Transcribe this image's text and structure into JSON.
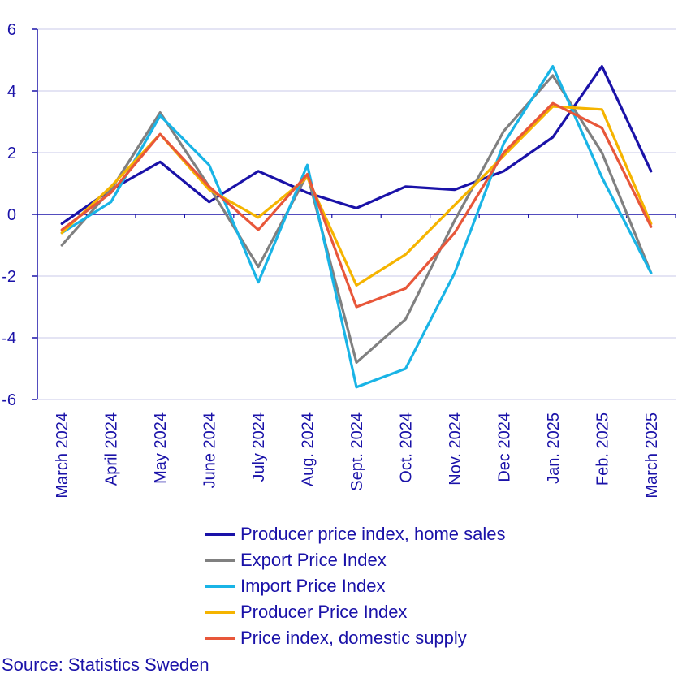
{
  "chart_data": {
    "type": "line",
    "title": "",
    "xlabel": "",
    "ylabel": "",
    "ylim": [
      -6,
      6
    ],
    "yticks": [
      "6",
      "4",
      "2",
      "0",
      "-2",
      "-4",
      "-6"
    ],
    "categories": [
      "March 2024",
      "April 2024",
      "May 2024",
      "June 2024",
      "July 2024",
      "Aug. 2024",
      "Sept. 2024",
      "Oct. 2024",
      "Nov. 2024",
      "Dec 2024",
      "Jan. 2025",
      "Feb. 2025",
      "March 2025"
    ],
    "series": [
      {
        "name": "Producer price index, home sales",
        "color": "#1a12a8",
        "values": [
          -0.3,
          0.8,
          1.7,
          0.4,
          1.4,
          0.7,
          0.2,
          0.9,
          0.8,
          1.4,
          2.5,
          4.8,
          1.4
        ]
      },
      {
        "name": "Export Price Index",
        "color": "#808080",
        "values": [
          -1.0,
          0.8,
          3.3,
          0.9,
          -1.7,
          1.3,
          -4.8,
          -3.4,
          -0.2,
          2.7,
          4.5,
          2.0,
          -1.9
        ]
      },
      {
        "name": "Import Price Index",
        "color": "#19b4e6",
        "values": [
          -0.6,
          0.4,
          3.2,
          1.6,
          -2.2,
          1.6,
          -5.6,
          -5.0,
          -1.9,
          2.3,
          4.8,
          1.2,
          -1.9
        ]
      },
      {
        "name": "Producer Price Index",
        "color": "#f5b400",
        "values": [
          -0.6,
          0.9,
          2.6,
          0.8,
          -0.1,
          1.2,
          -2.3,
          -1.3,
          0.3,
          1.9,
          3.5,
          3.4,
          -0.3
        ]
      },
      {
        "name": "Price index, domestic supply",
        "color": "#e8573a",
        "values": [
          -0.5,
          0.7,
          2.6,
          0.9,
          -0.5,
          1.3,
          -3.0,
          -2.4,
          -0.6,
          2.0,
          3.6,
          2.8,
          -0.4
        ]
      }
    ]
  },
  "source": "Source: Statistics Sweden"
}
